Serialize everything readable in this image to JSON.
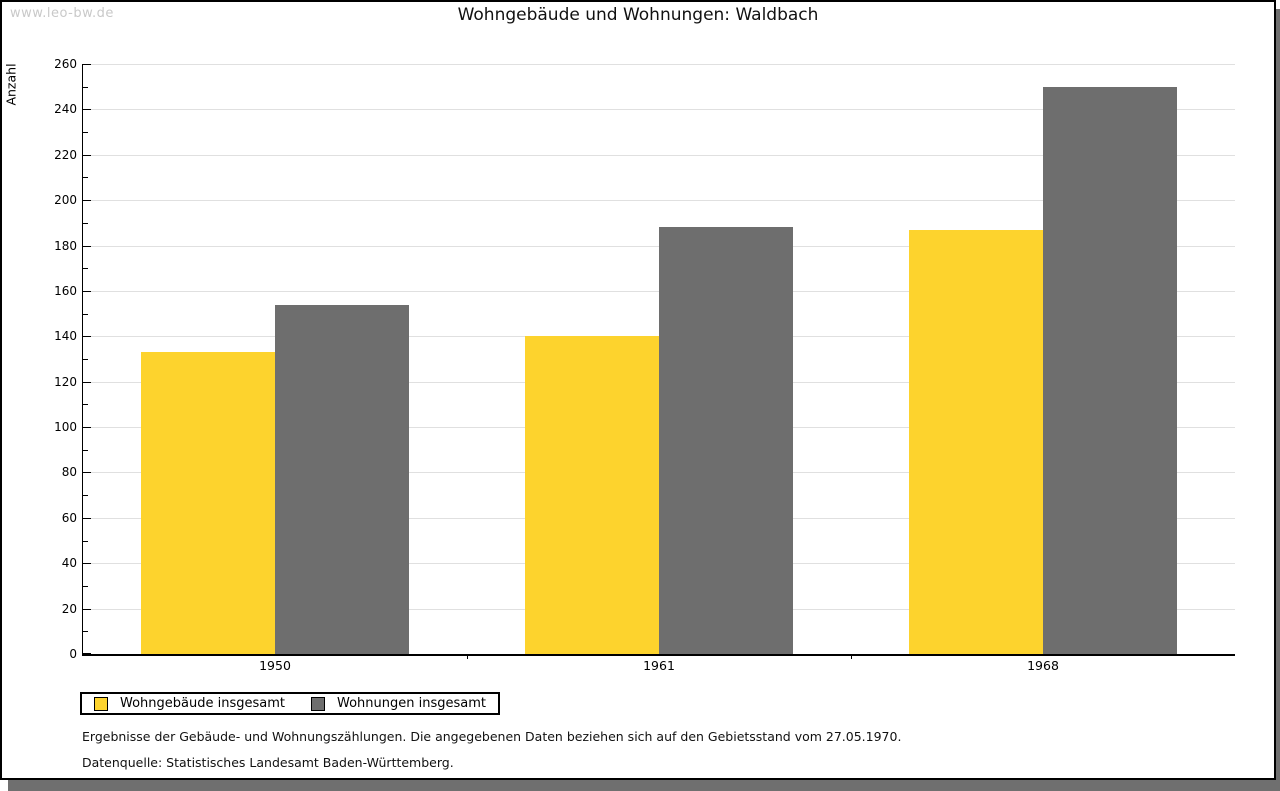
{
  "watermark": "www.leo-bw.de",
  "chart_data": {
    "type": "bar",
    "title": "Wohngebäude und Wohnungen: Waldbach",
    "ylabel": "Anzahl",
    "xlabel": "",
    "categories": [
      "1950",
      "1961",
      "1968"
    ],
    "series": [
      {
        "name": "Wohngebäude insgesamt",
        "color": "#fdd32d",
        "values": [
          133,
          140,
          187
        ]
      },
      {
        "name": "Wohnungen insgesamt",
        "color": "#6e6e6e",
        "values": [
          154,
          188,
          250
        ]
      }
    ],
    "ylim": [
      0,
      260
    ],
    "y_major_tick_step": 20,
    "y_minor_tick_step": 10,
    "y_major_tick_labels": [
      "0",
      "20",
      "40",
      "60",
      "80",
      "100",
      "120",
      "140",
      "160",
      "180",
      "200",
      "220",
      "240",
      "260"
    ],
    "grid": "horizontal-major-only",
    "legend_position": "bottom-left"
  },
  "footnotes": [
    "Ergebnisse der Gebäude- und Wohnungszählungen. Die angegebenen Daten beziehen sich auf den Gebietsstand vom 27.05.1970.",
    "Datenquelle: Statistisches Landesamt Baden-Württemberg."
  ],
  "colors": {
    "bar_yellow": "#fdd32d",
    "bar_gray": "#6e6e6e",
    "gridline": "#e0e0e0",
    "watermark_text": "#c9c9c9",
    "shadow": "#6f6f6f"
  }
}
